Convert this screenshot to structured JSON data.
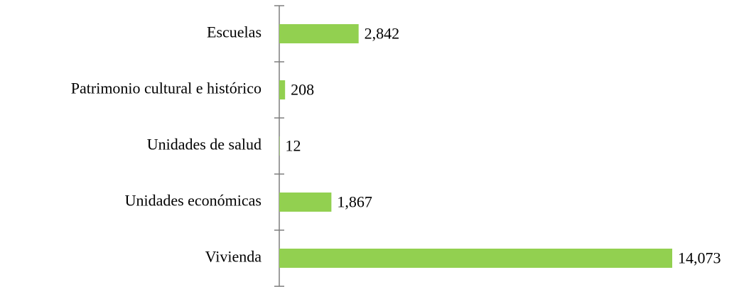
{
  "chart_data": {
    "type": "barh",
    "categories": [
      "Escuelas",
      "Patrimonio cultural e histórico",
      "Unidades de salud",
      "Unidades económicas",
      "Vivienda"
    ],
    "values": [
      2842,
      208,
      12,
      1867,
      14073
    ],
    "value_labels": [
      "2,842",
      "208",
      "12",
      "1,867",
      "14,073"
    ],
    "color": "#92d050"
  }
}
